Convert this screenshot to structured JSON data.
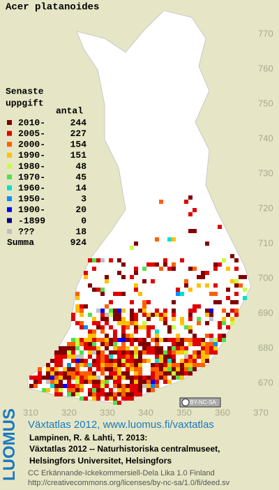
{
  "title": "Acer platanoides",
  "legend": {
    "heading": [
      "Senaste",
      "uppgift"
    ],
    "count_heading": "antal",
    "rows": [
      {
        "period": "2010-",
        "count": 244,
        "color": "#800000"
      },
      {
        "period": "2005-",
        "count": 227,
        "color": "#e00000"
      },
      {
        "period": "2000-",
        "count": 154,
        "color": "#ff6000"
      },
      {
        "period": "1990-",
        "count": 151,
        "color": "#ffc000"
      },
      {
        "period": "1980-",
        "count": 48,
        "color": "#c8ff40"
      },
      {
        "period": "1970-",
        "count": 45,
        "color": "#50e050"
      },
      {
        "period": "1960-",
        "count": 14,
        "color": "#00e0d0"
      },
      {
        "period": "1950-",
        "count": 3,
        "color": "#0090ff"
      },
      {
        "period": "1900-",
        "count": 20,
        "color": "#0000ff"
      },
      {
        "period": "-1899",
        "count": 0,
        "color": "#000080"
      },
      {
        "period": "???",
        "count": 18,
        "color": "#c0c0c0"
      }
    ],
    "total": {
      "label": "Summa",
      "count": 924
    }
  },
  "x_ticks": [
    310,
    320,
    330,
    340,
    350,
    360,
    370
  ],
  "y_ticks": [
    670,
    680,
    690,
    700,
    710,
    720,
    730,
    740,
    750,
    760,
    770
  ],
  "cc_badge": "BY-NC-SA",
  "footer": {
    "brand": "LUOMUS",
    "link": "Växtatlas 2012, www.luomus.fi/vaxtatlas",
    "citation": [
      "Lampinen, R. & Lahti, T. 2013:",
      "Växtatlas 2012 -- Naturhistoriska centralmuseet,",
      "Helsingfors Universitet, Helsingfors"
    ],
    "license": [
      "CC Erkännande-Ickekommersiell-Dela Lika 1.0 Finland",
      "http://creativecommons.org/licenses/by-nc-sa/1.0/fi/deed.sv"
    ]
  }
}
